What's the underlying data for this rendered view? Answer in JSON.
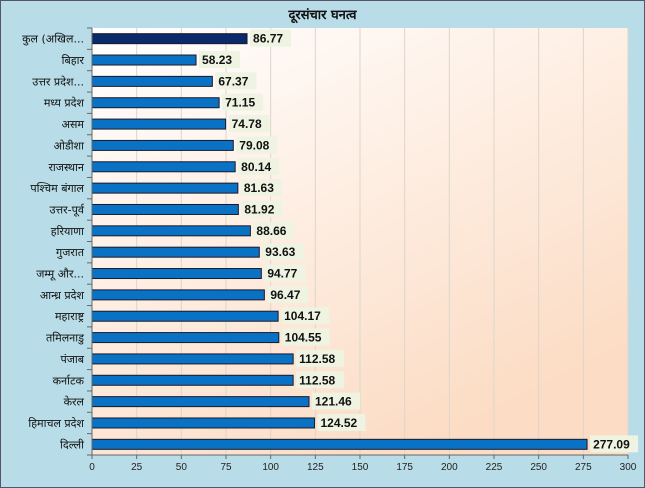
{
  "chart_data": {
    "type": "bar",
    "orientation": "horizontal",
    "title": "दूरसंचार घनत्व",
    "xlabel": "",
    "ylabel": "",
    "xlim": [
      0,
      300
    ],
    "xticks": [
      0,
      25,
      50,
      75,
      100,
      125,
      150,
      175,
      200,
      225,
      250,
      275,
      300
    ],
    "grid": true,
    "legend": "none",
    "categories": [
      "कुल (अखिल...",
      "बिहार",
      "उत्तर प्रदेश...",
      "मध्य प्रदेश",
      "असम",
      "ओडीशा",
      "राजस्थान",
      "पश्चिम बंगाल",
      "उत्तर-पूर्व",
      "हरियाणा",
      "गुजरात",
      "जम्मू और...",
      "आन्ध्र प्रदेश",
      "महाराष्ट्र",
      "तमिलनाडु",
      "पंजाब",
      "कर्नाटक",
      "केरल",
      "हिमाचल प्रदेश",
      "दिल्ली"
    ],
    "values": [
      86.77,
      58.23,
      67.37,
      71.15,
      74.78,
      79.08,
      80.14,
      81.63,
      81.92,
      88.66,
      93.63,
      94.77,
      96.47,
      104.17,
      104.55,
      112.58,
      112.58,
      121.46,
      124.52,
      277.09
    ],
    "value_labels": [
      "86.77",
      "58.23",
      "67.37",
      "71.15",
      "74.78",
      "79.08",
      "80.14",
      "81.63",
      "81.92",
      "88.66",
      "93.63",
      "94.77",
      "96.47",
      "104.17",
      "104.55",
      "112.58",
      "112.58",
      "121.46",
      "124.52",
      "277.09"
    ],
    "colors": {
      "highlight": "#0a2a6b",
      "bar": "#0a72c4",
      "label_bg": "#eef3e2"
    }
  }
}
